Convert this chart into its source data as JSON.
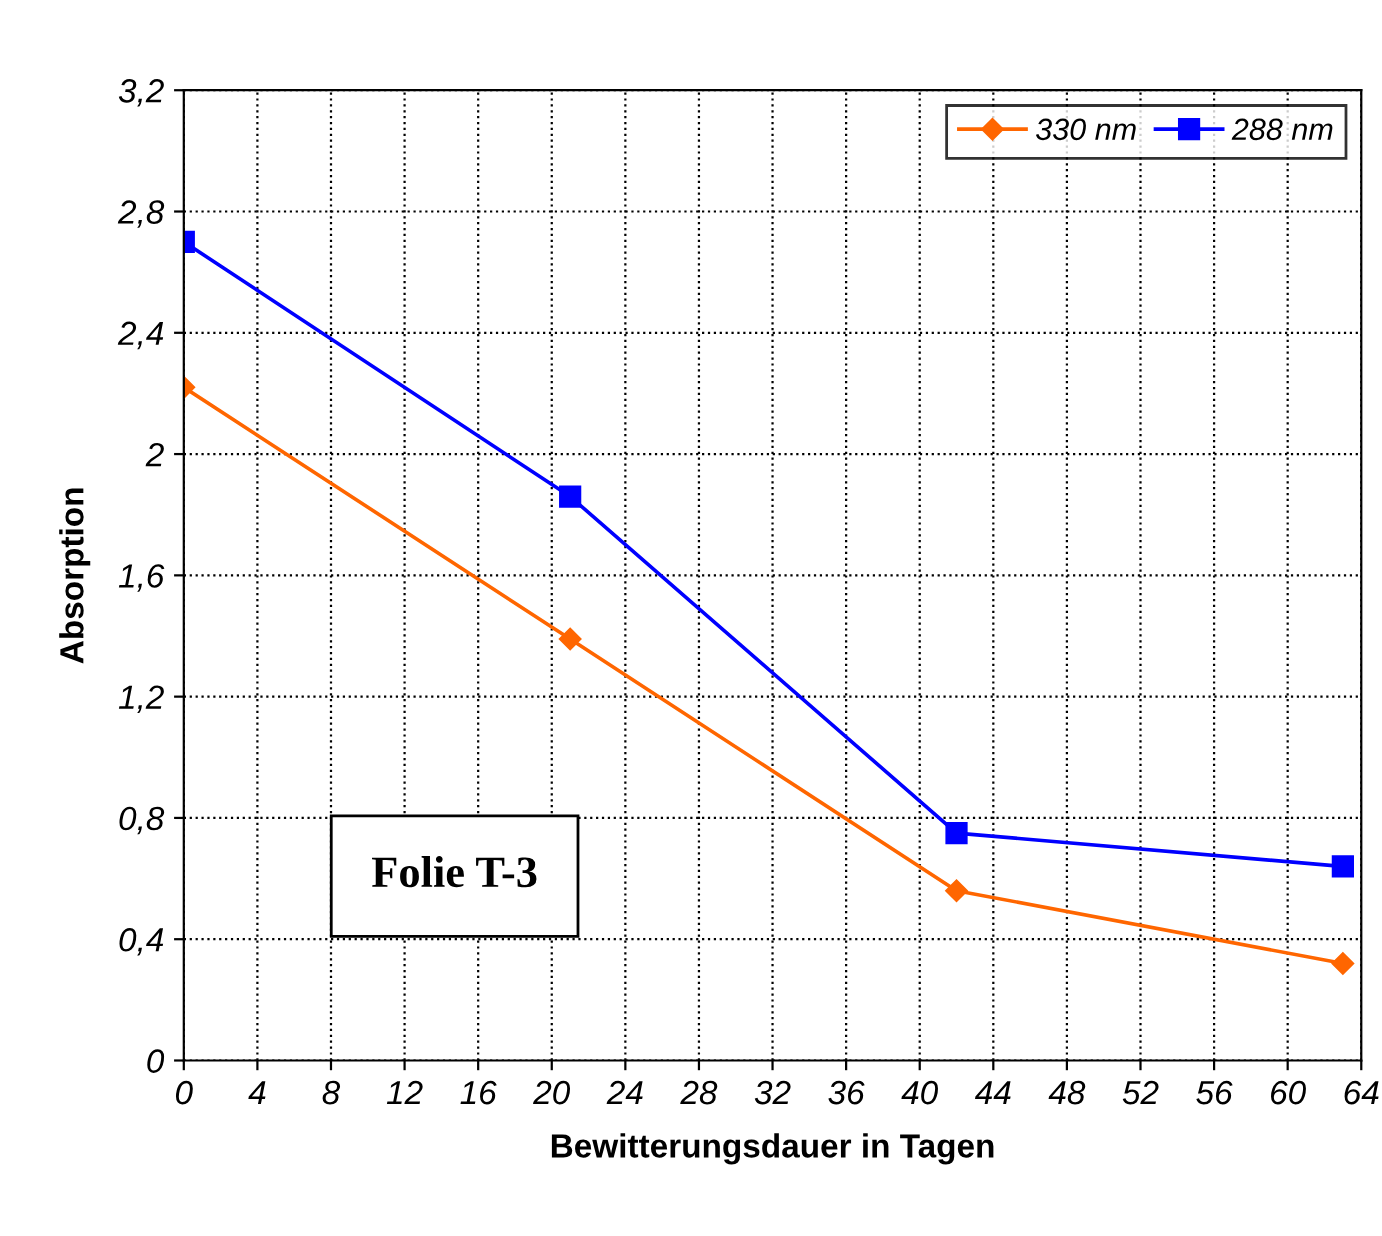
{
  "chart_data": {
    "type": "line",
    "xlabel": "Bewitterungsdauer in Tagen",
    "ylabel": "Absorption",
    "x": [
      0,
      21,
      42,
      63
    ],
    "series": [
      {
        "name": "330 nm",
        "color": "#ff6600",
        "marker": "diamond",
        "values": [
          2.22,
          1.39,
          0.56,
          0.32
        ]
      },
      {
        "name": "288 nm",
        "color": "#0000ff",
        "marker": "square",
        "values": [
          2.7,
          1.86,
          0.75,
          0.64
        ]
      }
    ],
    "xlim": [
      0,
      64
    ],
    "xticks": [
      0,
      4,
      8,
      12,
      16,
      20,
      24,
      28,
      32,
      36,
      40,
      44,
      48,
      52,
      56,
      60,
      64
    ],
    "ylim": [
      0,
      3.2
    ],
    "yticks": [
      0,
      {
        "value": 0.4,
        "label": "0,4"
      },
      {
        "value": 0.8,
        "label": "0,8"
      },
      {
        "value": 1.2,
        "label": "1,2"
      },
      {
        "value": 1.6,
        "label": "1,6"
      },
      2,
      {
        "value": 2.4,
        "label": "2,4"
      },
      {
        "value": 2.8,
        "label": "2,8"
      },
      {
        "value": 3.2,
        "label": "3,2"
      }
    ],
    "grid": true,
    "legend": "top right",
    "line_style": "solid",
    "annotations": [
      "Folie T-3"
    ]
  }
}
